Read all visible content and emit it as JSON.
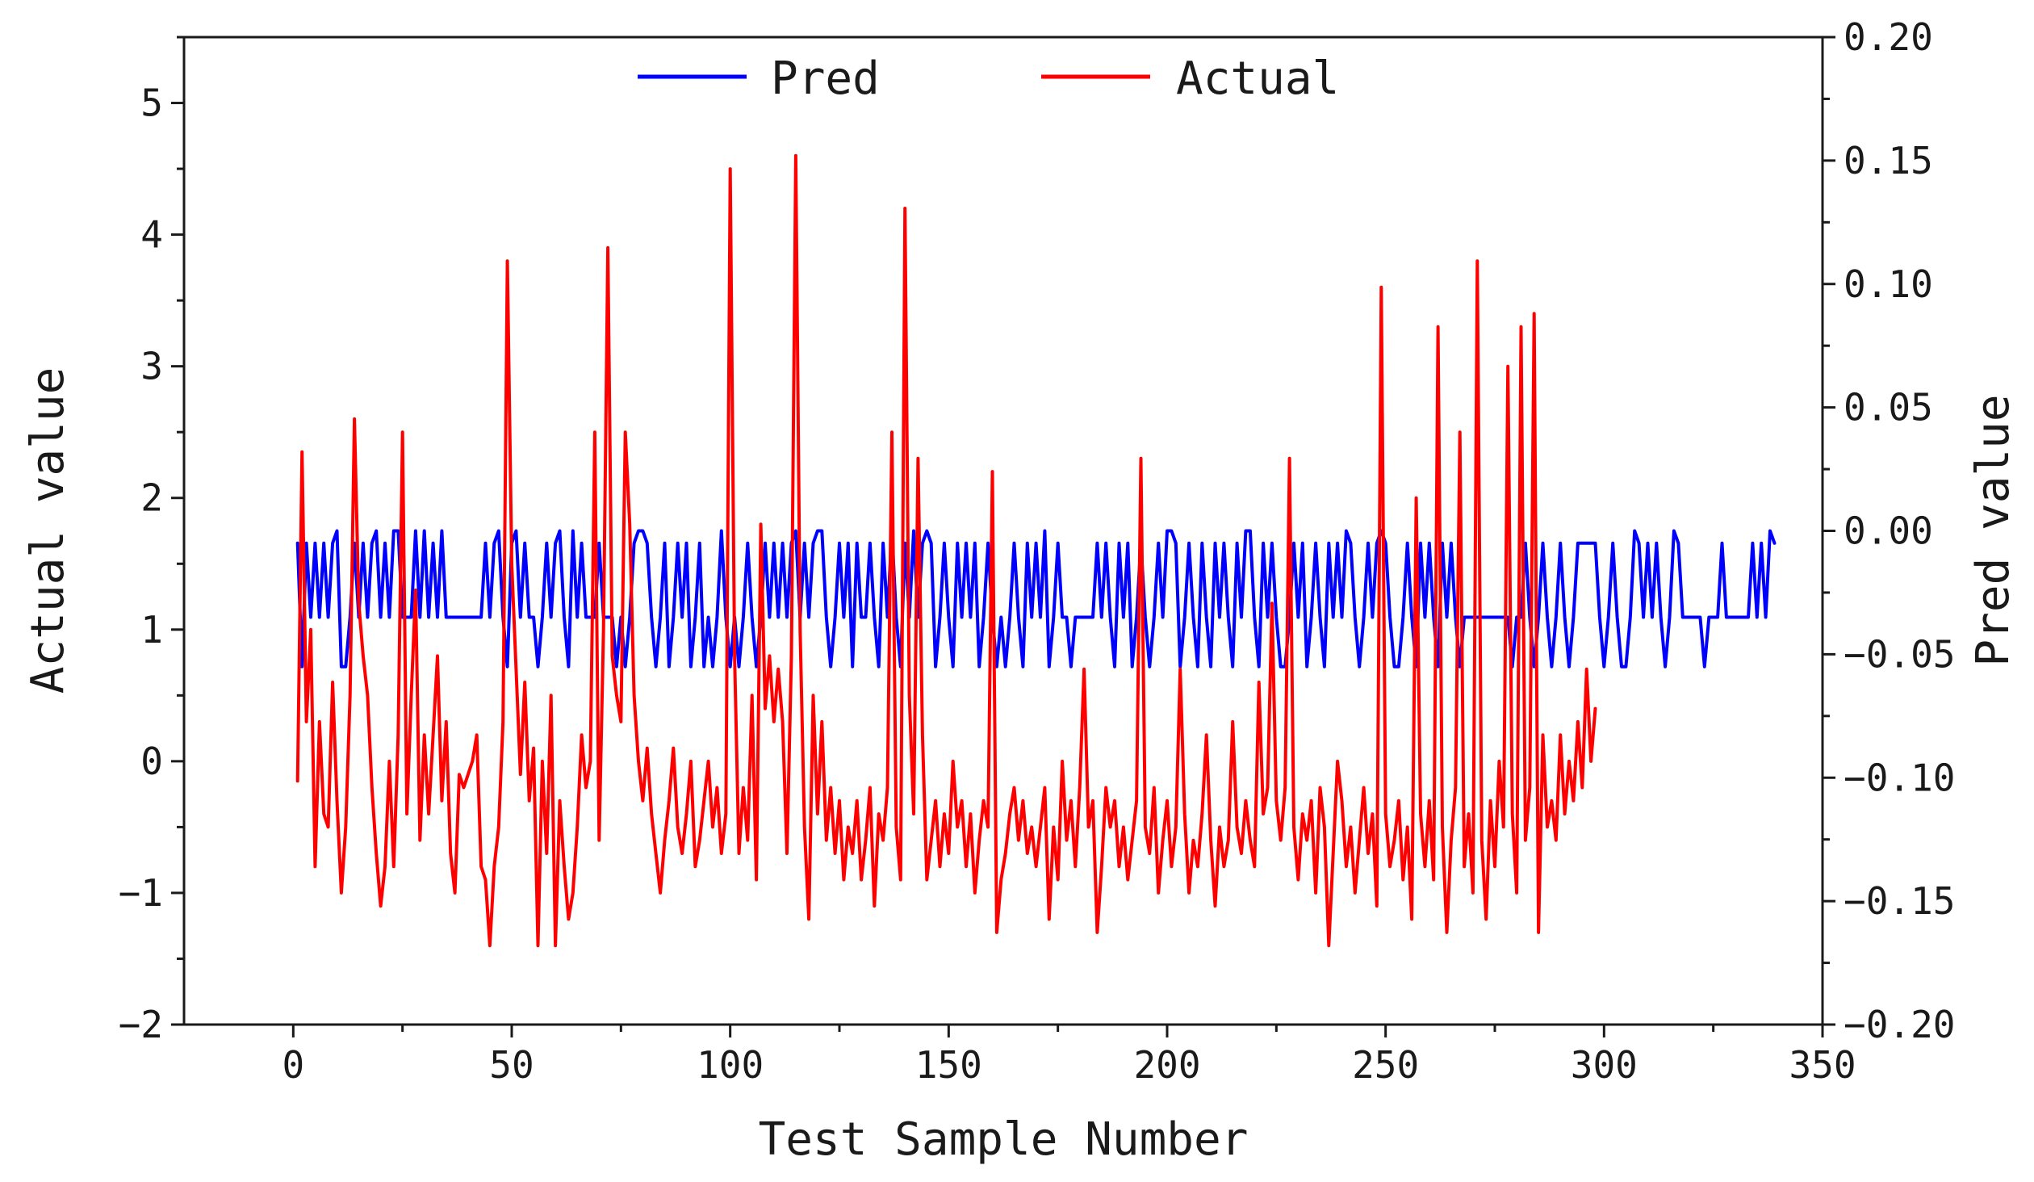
{
  "chart_data": {
    "type": "line",
    "title": "",
    "xlabel": "Test Sample Number",
    "ylabel_left": "Actual value",
    "ylabel_right": "Pred value",
    "xlim": [
      -25,
      350
    ],
    "ylim_left": [
      -2,
      5.5
    ],
    "ylim_right": [
      -0.2,
      0.2
    ],
    "x_ticks": [
      0,
      50,
      100,
      150,
      200,
      250,
      300,
      350
    ],
    "x_tick_labels": [
      "0",
      "50",
      "100",
      "150",
      "200",
      "250",
      "300",
      "350"
    ],
    "y_left_ticks": [
      -2,
      -1,
      0,
      1,
      2,
      3,
      4,
      5
    ],
    "y_left_tick_labels": [
      "−2",
      "−1",
      "0",
      "1",
      "2",
      "3",
      "4",
      "5"
    ],
    "y_right_ticks": [
      -0.2,
      -0.15,
      -0.1,
      -0.05,
      0,
      0.05,
      0.1,
      0.15,
      0.2
    ],
    "y_right_tick_labels": [
      "−0.20",
      "−0.15",
      "−0.10",
      "−0.05",
      "0.00",
      "0.05",
      "0.10",
      "0.15",
      "0.20"
    ],
    "grid": false,
    "legend_position": "top-center",
    "series": [
      {
        "name": "Pred",
        "axis": "right",
        "color": "#0000ff",
        "values": [
          -0.005,
          -0.055,
          -0.005,
          -0.035,
          -0.005,
          -0.035,
          -0.005,
          -0.035,
          -0.005,
          0.0,
          -0.055,
          -0.055,
          -0.035,
          -0.005,
          -0.035,
          -0.005,
          -0.035,
          -0.005,
          0.0,
          -0.035,
          -0.005,
          -0.035,
          0.0,
          0.0,
          -0.035,
          -0.035,
          -0.035,
          0.0,
          -0.035,
          0.0,
          -0.035,
          -0.005,
          -0.035,
          0.0,
          -0.035,
          -0.035,
          -0.035,
          -0.035,
          -0.035,
          -0.035,
          -0.035,
          -0.035,
          -0.035,
          -0.005,
          -0.035,
          -0.005,
          0.0,
          -0.035,
          -0.055,
          -0.005,
          0.0,
          -0.035,
          -0.005,
          -0.035,
          -0.035,
          -0.055,
          -0.035,
          -0.005,
          -0.035,
          -0.005,
          0.0,
          -0.035,
          -0.055,
          0.0,
          -0.035,
          -0.005,
          -0.035,
          -0.035,
          -0.035,
          -0.005,
          -0.035,
          -0.035,
          -0.035,
          -0.055,
          -0.035,
          -0.055,
          -0.035,
          -0.005,
          0.0,
          0.0,
          -0.005,
          -0.035,
          -0.055,
          -0.035,
          -0.005,
          -0.055,
          -0.035,
          -0.005,
          -0.035,
          -0.005,
          -0.055,
          -0.035,
          -0.005,
          -0.055,
          -0.035,
          -0.055,
          -0.035,
          0.0,
          -0.035,
          -0.055,
          -0.035,
          -0.055,
          -0.035,
          -0.005,
          -0.035,
          -0.055,
          -0.035,
          -0.005,
          -0.035,
          -0.005,
          -0.035,
          -0.005,
          -0.035,
          -0.005,
          0.0,
          -0.035,
          -0.005,
          -0.035,
          -0.005,
          0.0,
          0.0,
          -0.035,
          -0.055,
          -0.035,
          -0.005,
          -0.035,
          -0.005,
          -0.055,
          -0.005,
          -0.035,
          -0.035,
          -0.005,
          -0.035,
          -0.055,
          -0.005,
          -0.035,
          0.0,
          -0.035,
          -0.055,
          -0.005,
          -0.035,
          0.0,
          -0.035,
          -0.005,
          0.0,
          -0.005,
          -0.055,
          -0.035,
          -0.005,
          -0.035,
          -0.055,
          -0.005,
          -0.035,
          -0.005,
          -0.035,
          -0.005,
          -0.055,
          -0.035,
          -0.005,
          -0.035,
          -0.055,
          -0.035,
          -0.055,
          -0.035,
          -0.005,
          -0.035,
          -0.055,
          -0.005,
          -0.035,
          -0.005,
          -0.035,
          0.0,
          -0.055,
          -0.035,
          -0.005,
          -0.035,
          -0.035,
          -0.055,
          -0.035,
          -0.035,
          -0.035,
          -0.035,
          -0.035,
          -0.005,
          -0.035,
          -0.005,
          -0.035,
          -0.055,
          -0.005,
          -0.035,
          -0.005,
          -0.055,
          -0.035,
          -0.005,
          -0.035,
          -0.055,
          -0.035,
          -0.005,
          -0.035,
          0.0,
          0.0,
          -0.005,
          -0.055,
          -0.035,
          -0.005,
          -0.035,
          -0.055,
          -0.005,
          -0.035,
          -0.055,
          -0.005,
          -0.035,
          -0.005,
          -0.035,
          -0.055,
          -0.005,
          -0.035,
          0.0,
          0.0,
          -0.035,
          -0.055,
          -0.005,
          -0.035,
          -0.005,
          -0.035,
          -0.055,
          -0.055,
          -0.035,
          -0.005,
          -0.035,
          -0.005,
          -0.055,
          -0.035,
          -0.005,
          -0.035,
          -0.055,
          -0.005,
          -0.035,
          -0.005,
          -0.035,
          0.0,
          -0.005,
          -0.035,
          -0.055,
          -0.035,
          -0.005,
          -0.035,
          -0.005,
          0.0,
          -0.005,
          -0.035,
          -0.055,
          -0.055,
          -0.035,
          -0.005,
          -0.035,
          -0.055,
          -0.005,
          -0.035,
          -0.005,
          -0.035,
          -0.055,
          -0.005,
          -0.035,
          -0.005,
          -0.035,
          -0.055,
          -0.035,
          -0.035,
          -0.035,
          -0.035,
          -0.035,
          -0.035,
          -0.035,
          -0.035,
          -0.035,
          -0.035,
          -0.035,
          -0.055,
          -0.035,
          -0.035,
          -0.005,
          -0.035,
          -0.055,
          -0.035,
          -0.005,
          -0.035,
          -0.055,
          -0.035,
          -0.005,
          -0.035,
          -0.055,
          -0.035,
          -0.005,
          -0.005,
          -0.005,
          -0.005,
          -0.005,
          -0.035,
          -0.055,
          -0.035,
          -0.005,
          -0.035,
          -0.055,
          -0.055,
          -0.035,
          0.0,
          -0.005,
          -0.035,
          -0.005,
          -0.035,
          -0.005,
          -0.035,
          -0.055,
          -0.035,
          0.0,
          -0.005,
          -0.035,
          -0.035,
          -0.035,
          -0.035,
          -0.035,
          -0.055,
          -0.035,
          -0.035,
          -0.035,
          -0.005,
          -0.035,
          -0.035,
          -0.035,
          -0.035,
          -0.035,
          -0.035,
          -0.005,
          -0.035,
          -0.005,
          -0.035,
          0.0,
          -0.005
        ]
      },
      {
        "name": "Actual",
        "axis": "left",
        "color": "#ff0000",
        "values": [
          -0.15,
          2.35,
          0.3,
          1.0,
          -0.8,
          0.3,
          -0.4,
          -0.5,
          0.6,
          -0.3,
          -1.0,
          -0.5,
          0.5,
          2.6,
          1.2,
          0.8,
          0.5,
          -0.2,
          -0.7,
          -1.1,
          -0.8,
          0.0,
          -0.8,
          0.2,
          2.5,
          -0.4,
          0.5,
          1.3,
          -0.6,
          0.2,
          -0.4,
          0.2,
          0.8,
          -0.3,
          0.3,
          -0.7,
          -1.0,
          -0.1,
          -0.2,
          -0.1,
          0.0,
          0.2,
          -0.8,
          -0.9,
          -1.4,
          -0.8,
          -0.5,
          0.3,
          3.8,
          1.5,
          0.7,
          -0.1,
          0.6,
          -0.3,
          0.1,
          -1.4,
          0.0,
          -0.7,
          0.5,
          -1.4,
          -0.3,
          -0.8,
          -1.2,
          -1.0,
          -0.5,
          0.2,
          -0.2,
          0.0,
          2.5,
          -0.6,
          1.0,
          3.9,
          0.8,
          0.5,
          0.3,
          2.5,
          1.8,
          0.5,
          0.0,
          -0.3,
          0.1,
          -0.4,
          -0.7,
          -1.0,
          -0.6,
          -0.3,
          0.1,
          -0.5,
          -0.7,
          -0.4,
          0.0,
          -0.8,
          -0.6,
          -0.3,
          0.0,
          -0.5,
          -0.2,
          -0.7,
          -0.4,
          4.5,
          0.8,
          -0.7,
          -0.2,
          -0.6,
          0.5,
          -0.9,
          1.8,
          0.4,
          0.8,
          0.3,
          0.7,
          0.3,
          -0.7,
          0.8,
          4.6,
          1.0,
          -0.5,
          -1.2,
          0.5,
          -0.4,
          0.3,
          -0.6,
          -0.2,
          -0.7,
          -0.3,
          -0.9,
          -0.5,
          -0.7,
          -0.3,
          -0.9,
          -0.6,
          -0.2,
          -1.1,
          -0.4,
          -0.6,
          -0.2,
          2.5,
          -0.5,
          -0.9,
          4.2,
          0.5,
          -0.4,
          2.3,
          0.2,
          -0.9,
          -0.6,
          -0.3,
          -0.8,
          -0.4,
          -0.7,
          0.0,
          -0.5,
          -0.3,
          -0.8,
          -0.4,
          -1.0,
          -0.6,
          -0.3,
          -0.5,
          2.2,
          -1.3,
          -0.9,
          -0.7,
          -0.4,
          -0.2,
          -0.6,
          -0.3,
          -0.7,
          -0.5,
          -0.8,
          -0.5,
          -0.2,
          -1.2,
          -0.5,
          -0.9,
          0.0,
          -0.6,
          -0.3,
          -0.8,
          -0.2,
          0.7,
          -0.5,
          -0.3,
          -1.3,
          -0.8,
          -0.2,
          -0.5,
          -0.3,
          -0.8,
          -0.5,
          -0.9,
          -0.6,
          -0.3,
          2.3,
          -0.5,
          -0.7,
          -0.2,
          -1.0,
          -0.6,
          -0.3,
          -0.8,
          -0.5,
          0.7,
          -0.4,
          -1.0,
          -0.6,
          -0.8,
          -0.4,
          0.2,
          -0.6,
          -1.1,
          -0.5,
          -0.8,
          -0.6,
          0.3,
          -0.5,
          -0.7,
          -0.3,
          -0.6,
          -0.8,
          0.6,
          -0.4,
          -0.2,
          1.2,
          -0.3,
          -0.6,
          -0.2,
          2.3,
          -0.5,
          -0.9,
          -0.4,
          -0.6,
          -0.3,
          -1.0,
          -0.2,
          -0.5,
          -1.4,
          -0.7,
          0.0,
          -0.3,
          -0.8,
          -0.5,
          -1.0,
          -0.6,
          -0.2,
          -0.7,
          -0.4,
          -1.1,
          3.6,
          -0.4,
          -0.8,
          -0.6,
          -0.3,
          -0.9,
          -0.5,
          -1.2,
          2.0,
          -0.4,
          -0.8,
          -0.3,
          -0.9,
          3.3,
          -0.5,
          -1.3,
          -0.6,
          -0.2,
          2.5,
          -0.8,
          -0.4,
          -1.0,
          3.8,
          -0.6,
          -1.2,
          -0.3,
          -0.8,
          0.0,
          -0.5,
          3.0,
          -0.4,
          -1.0,
          3.3,
          -0.6,
          -0.2,
          3.4,
          -1.3,
          0.2,
          -0.5,
          -0.3,
          -0.6,
          0.2,
          -0.4,
          0.0,
          -0.3,
          0.3,
          -0.2,
          0.7,
          0.0,
          0.4
        ]
      }
    ]
  }
}
